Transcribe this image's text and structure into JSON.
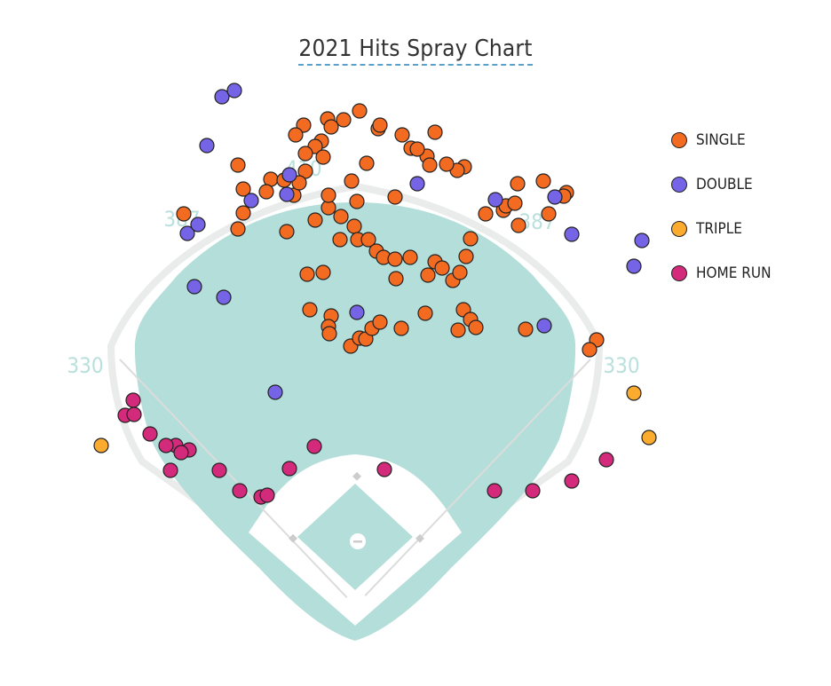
{
  "page": {
    "title": "2021 Hits Spray Chart"
  },
  "colors": {
    "grass": "#b4ded9",
    "dirt": "#ffffff",
    "outline": "#e9eceb",
    "fence_label": "#b9e0dc",
    "SINGLE": "#f26b21",
    "DOUBLE": "#7565e6",
    "TRIPLE": "#fbab2e",
    "HOME RUN": "#d42a7c"
  },
  "legend": {
    "items": [
      {
        "label": "SINGLE",
        "color": "#f26b21"
      },
      {
        "label": "DOUBLE",
        "color": "#7565e6"
      },
      {
        "label": "TRIPLE",
        "color": "#fbab2e"
      },
      {
        "label": "HOME RUN",
        "color": "#d42a7c"
      }
    ]
  },
  "chart_data": {
    "type": "scatter",
    "title": "2021 Hits Spray Chart",
    "field_distance_labels": [
      "330",
      "387",
      "410",
      "387",
      "330"
    ],
    "series": [
      {
        "name": "SINGLE",
        "points": [
          [
            -195,
            111
          ],
          [
            -134,
            166
          ],
          [
            -128,
            139
          ],
          [
            -128,
            112
          ],
          [
            -134,
            94
          ],
          [
            -97,
            150
          ],
          [
            -71,
            132
          ],
          [
            -47,
            104
          ],
          [
            -32,
            118
          ],
          [
            -32,
            132
          ],
          [
            -6,
            148
          ],
          [
            11,
            168
          ],
          [
            24,
            207
          ],
          [
            61,
            185
          ],
          [
            88,
            203
          ],
          [
            43,
            130
          ],
          [
            0,
            125
          ],
          [
            -18,
            108
          ],
          [
            -3,
            97
          ],
          [
            1,
            82
          ],
          [
            13,
            82
          ],
          [
            -19,
            82
          ],
          [
            22,
            69
          ],
          [
            30,
            62
          ],
          [
            43,
            60
          ],
          [
            60,
            62
          ],
          [
            88,
            57
          ],
          [
            44,
            38
          ],
          [
            80,
            42
          ],
          [
            96,
            50
          ],
          [
            108,
            36
          ],
          [
            116,
            45
          ],
          [
            123,
            63
          ],
          [
            128,
            83
          ],
          [
            145,
            111
          ],
          [
            165,
            115
          ],
          [
            182,
            98
          ],
          [
            168,
            120
          ],
          [
            178,
            123
          ],
          [
            216,
            111
          ],
          [
            181,
            145
          ],
          [
            210,
            148
          ],
          [
            236,
            135
          ],
          [
            233,
            131
          ],
          [
            121,
            164
          ],
          [
            113,
            160
          ],
          [
            79,
            176
          ],
          [
            82,
            166
          ],
          [
            101,
            167
          ],
          [
            68,
            184
          ],
          [
            51,
            200
          ],
          [
            26,
            211
          ],
          [
            3,
            227
          ],
          [
            -15,
            217
          ],
          [
            -33,
            218
          ],
          [
            -29,
            209
          ],
          [
            -40,
            193
          ],
          [
            -47,
            187
          ],
          [
            -38,
            175
          ],
          [
            -58,
            179
          ],
          [
            -60,
            211
          ],
          [
            -69,
            200
          ],
          [
            -58,
            159
          ],
          [
            -65,
            146
          ],
          [
            -82,
            149
          ],
          [
            -102,
            136
          ],
          [
            -79,
            91
          ],
          [
            -38,
            45
          ],
          [
            -56,
            43
          ],
          [
            -53,
            3
          ],
          [
            -29,
            -4
          ],
          [
            -32,
            -16
          ],
          [
            -31,
            -24
          ],
          [
            -7,
            -38
          ],
          [
            3,
            -29
          ],
          [
            10,
            -30
          ],
          [
            17,
            -18
          ],
          [
            26,
            -11
          ],
          [
            50,
            -18
          ],
          [
            77,
            -1
          ],
          [
            120,
            3
          ],
          [
            114,
            -20
          ],
          [
            128,
            -8
          ],
          [
            134,
            -17
          ],
          [
            190,
            -19
          ],
          [
            270,
            -31
          ],
          [
            262,
            -42
          ]
        ]
      },
      {
        "name": "DOUBLE",
        "points": [
          [
            -92,
            -90
          ],
          [
            -150,
            17
          ],
          [
            -183,
            29
          ],
          [
            -191,
            89
          ],
          [
            -179,
            99
          ],
          [
            -119,
            126
          ],
          [
            -79,
            133
          ],
          [
            -76,
            155
          ],
          [
            -169,
            188
          ],
          [
            -152,
            243
          ],
          [
            -138,
            250
          ],
          [
            68,
            145
          ],
          [
            156,
            127
          ],
          [
            223,
            130
          ],
          [
            242,
            88
          ],
          [
            321,
            81
          ],
          [
            312,
            52
          ],
          [
            211,
            -15
          ],
          [
            0,
            0
          ]
        ]
      },
      {
        "name": "TRIPLE",
        "points": [
          [
            -288,
            -150
          ],
          [
            312,
            -91
          ],
          [
            329,
            -141
          ]
        ]
      },
      {
        "name": "HOME RUN",
        "points": [
          [
            -252,
            -99
          ],
          [
            -261,
            -116
          ],
          [
            -251,
            -115
          ],
          [
            -233,
            -137
          ],
          [
            -204,
            -150
          ],
          [
            -189,
            -155
          ],
          [
            -198,
            -158
          ],
          [
            -215,
            -150
          ],
          [
            -210,
            -178
          ],
          [
            -155,
            -178
          ],
          [
            -132,
            -201
          ],
          [
            -108,
            -208
          ],
          [
            -101,
            -206
          ],
          [
            -76,
            -176
          ],
          [
            -48,
            -151
          ],
          [
            31,
            -177
          ],
          [
            155,
            -201
          ],
          [
            198,
            -201
          ],
          [
            242,
            -190
          ],
          [
            281,
            -166
          ]
        ]
      }
    ]
  }
}
